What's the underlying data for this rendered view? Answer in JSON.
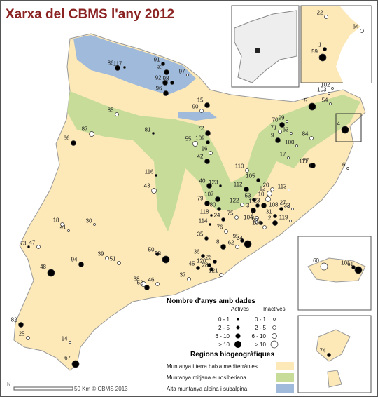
{
  "title": "Xarxa del CBMS l'any 2012",
  "legend": {
    "title": "Nombre d'anys amb dades",
    "active_header": "Actives",
    "inactive_header": "Inactives",
    "classes": [
      "0 - 1",
      "2 - 5",
      "6 - 10",
      "> 10"
    ]
  },
  "regions": {
    "title": "Regions biogeogràfiques",
    "items": [
      {
        "label": "Muntanya i terra baixa mediterrànies",
        "color": "#fde9b8"
      },
      {
        "label": "Muntanya mitjana eurosiberiana",
        "color": "#c8dc9a"
      },
      {
        "label": "Alta muntanya alpina i subalpina",
        "color": "#9fbadb"
      }
    ]
  },
  "scale": "50 Km © CBMS 2013",
  "north": "N",
  "sites": [
    {
      "label": "91",
      "active": true,
      "class": 1
    },
    {
      "label": "93",
      "active": true,
      "class": 2
    },
    {
      "label": "97",
      "active": false,
      "class": 0
    },
    {
      "label": "86",
      "active": true,
      "class": 2
    },
    {
      "label": "117",
      "active": true,
      "class": 0
    },
    {
      "label": "92",
      "active": true,
      "class": 2
    },
    {
      "label": "98",
      "active": true,
      "class": 1
    },
    {
      "label": "96",
      "active": true,
      "class": 2
    },
    {
      "label": "15",
      "active": true,
      "class": 2
    },
    {
      "label": "90",
      "active": false,
      "class": 1
    },
    {
      "label": "85",
      "active": false,
      "class": 1
    },
    {
      "label": "99",
      "active": false,
      "class": 0
    },
    {
      "label": "5",
      "active": true,
      "class": 3
    },
    {
      "label": "102",
      "active": false,
      "class": 0
    },
    {
      "label": "103",
      "active": false,
      "class": 0
    },
    {
      "label": "54",
      "active": false,
      "class": 0
    },
    {
      "label": "87",
      "active": false,
      "class": 2
    },
    {
      "label": "81",
      "active": true,
      "class": 0
    },
    {
      "label": "72",
      "active": true,
      "class": 2
    },
    {
      "label": "71",
      "active": false,
      "class": 1
    },
    {
      "label": "70",
      "active": true,
      "class": 2
    },
    {
      "label": "63",
      "active": false,
      "class": 0
    },
    {
      "label": "84",
      "active": false,
      "class": 1
    },
    {
      "label": "9",
      "active": true,
      "class": 2
    },
    {
      "label": "55",
      "active": false,
      "class": 2
    },
    {
      "label": "109",
      "active": true,
      "class": 1
    },
    {
      "label": "100",
      "active": false,
      "class": 0
    },
    {
      "label": "66",
      "active": true,
      "class": 2
    },
    {
      "label": "16",
      "active": false,
      "class": 1
    },
    {
      "label": "17",
      "active": false,
      "class": 0
    },
    {
      "label": "42",
      "active": true,
      "class": 2
    },
    {
      "label": "111",
      "active": true,
      "class": 1
    },
    {
      "label": "77",
      "active": true,
      "class": 2
    },
    {
      "label": "6",
      "active": false,
      "class": 0
    },
    {
      "label": "110",
      "active": false,
      "class": 1
    },
    {
      "label": "116",
      "active": true,
      "class": 0
    },
    {
      "label": "40",
      "active": true,
      "class": 2
    },
    {
      "label": "123",
      "active": true,
      "class": 0
    },
    {
      "label": "105",
      "active": true,
      "class": 1
    },
    {
      "label": "112",
      "active": true,
      "class": 2
    },
    {
      "label": "43",
      "active": false,
      "class": 2
    },
    {
      "label": "20",
      "active": false,
      "class": 1
    },
    {
      "label": "113",
      "active": false,
      "class": 0
    },
    {
      "label": "12",
      "active": false,
      "class": 2
    },
    {
      "label": "107",
      "active": true,
      "class": 2
    },
    {
      "label": "10",
      "active": false,
      "class": 2
    },
    {
      "label": "79",
      "active": true,
      "class": 2
    },
    {
      "label": "53",
      "active": true,
      "class": 1
    },
    {
      "label": "23",
      "active": true,
      "class": 2
    },
    {
      "label": "27",
      "active": false,
      "class": 0
    },
    {
      "label": "80",
      "active": true,
      "class": 1
    },
    {
      "label": "122",
      "active": false,
      "class": 1
    },
    {
      "label": "3",
      "active": true,
      "class": 2
    },
    {
      "label": "11",
      "active": true,
      "class": 1
    },
    {
      "label": "108",
      "active": true,
      "class": 1
    },
    {
      "label": "32",
      "active": false,
      "class": 0
    },
    {
      "label": "118",
      "active": true,
      "class": 0
    },
    {
      "label": "7",
      "active": false,
      "class": 1
    },
    {
      "label": "104",
      "active": false,
      "class": 1
    },
    {
      "label": "31",
      "active": true,
      "class": 1
    },
    {
      "label": "75",
      "active": false,
      "class": 1
    },
    {
      "label": "65",
      "active": true,
      "class": 1
    },
    {
      "label": "114",
      "active": true,
      "class": 0
    },
    {
      "label": "24",
      "active": true,
      "class": 1
    },
    {
      "label": "106",
      "active": false,
      "class": 1
    },
    {
      "label": "76",
      "active": false,
      "class": 1
    },
    {
      "label": "119",
      "active": false,
      "class": 0
    },
    {
      "label": "2",
      "active": true,
      "class": 2
    },
    {
      "label": "18",
      "active": false,
      "class": 1
    },
    {
      "label": "41",
      "active": false,
      "class": 0
    },
    {
      "label": "30",
      "active": false,
      "class": 0
    },
    {
      "label": "35",
      "active": true,
      "class": 1
    },
    {
      "label": "95",
      "active": true,
      "class": 1
    },
    {
      "label": "34",
      "active": true,
      "class": 3
    },
    {
      "label": "62",
      "active": false,
      "class": 1
    },
    {
      "label": "8",
      "active": true,
      "class": 2
    },
    {
      "label": "73",
      "active": true,
      "class": 0
    },
    {
      "label": "47",
      "active": false,
      "class": 1
    },
    {
      "label": "50",
      "active": true,
      "class": 1
    },
    {
      "label": "58",
      "active": true,
      "class": 3
    },
    {
      "label": "36",
      "active": true,
      "class": 1
    },
    {
      "label": "26",
      "active": true,
      "class": 1
    },
    {
      "label": "120",
      "active": true,
      "class": 1
    },
    {
      "label": "94",
      "active": true,
      "class": 2
    },
    {
      "label": "39",
      "active": false,
      "class": 1
    },
    {
      "label": "51",
      "active": false,
      "class": 1
    },
    {
      "label": "45",
      "active": true,
      "class": 1
    },
    {
      "label": "28",
      "active": true,
      "class": 1
    },
    {
      "label": "121",
      "active": false,
      "class": 1
    },
    {
      "label": "48",
      "active": true,
      "class": 3
    },
    {
      "label": "38",
      "active": false,
      "class": 2
    },
    {
      "label": "52",
      "active": true,
      "class": 2
    },
    {
      "label": "46",
      "active": false,
      "class": 1
    },
    {
      "label": "37",
      "active": false,
      "class": 1
    },
    {
      "label": "82",
      "active": true,
      "class": 2
    },
    {
      "label": "25",
      "active": false,
      "class": 1
    },
    {
      "label": "14",
      "active": false,
      "class": 0
    },
    {
      "label": "67",
      "active": true,
      "class": 3
    },
    {
      "label": "4",
      "active": true,
      "class": 3
    },
    {
      "label": "22",
      "active": false,
      "class": 1
    },
    {
      "label": "64",
      "active": false,
      "class": 1
    },
    {
      "label": "1",
      "active": true,
      "class": 1
    },
    {
      "label": "59",
      "active": true,
      "class": 3
    },
    {
      "label": "60",
      "active": false,
      "class": 3
    },
    {
      "label": "101",
      "active": true,
      "class": 1
    },
    {
      "label": "61",
      "active": true,
      "class": 3
    },
    {
      "label": "74",
      "active": true,
      "class": 1
    }
  ]
}
